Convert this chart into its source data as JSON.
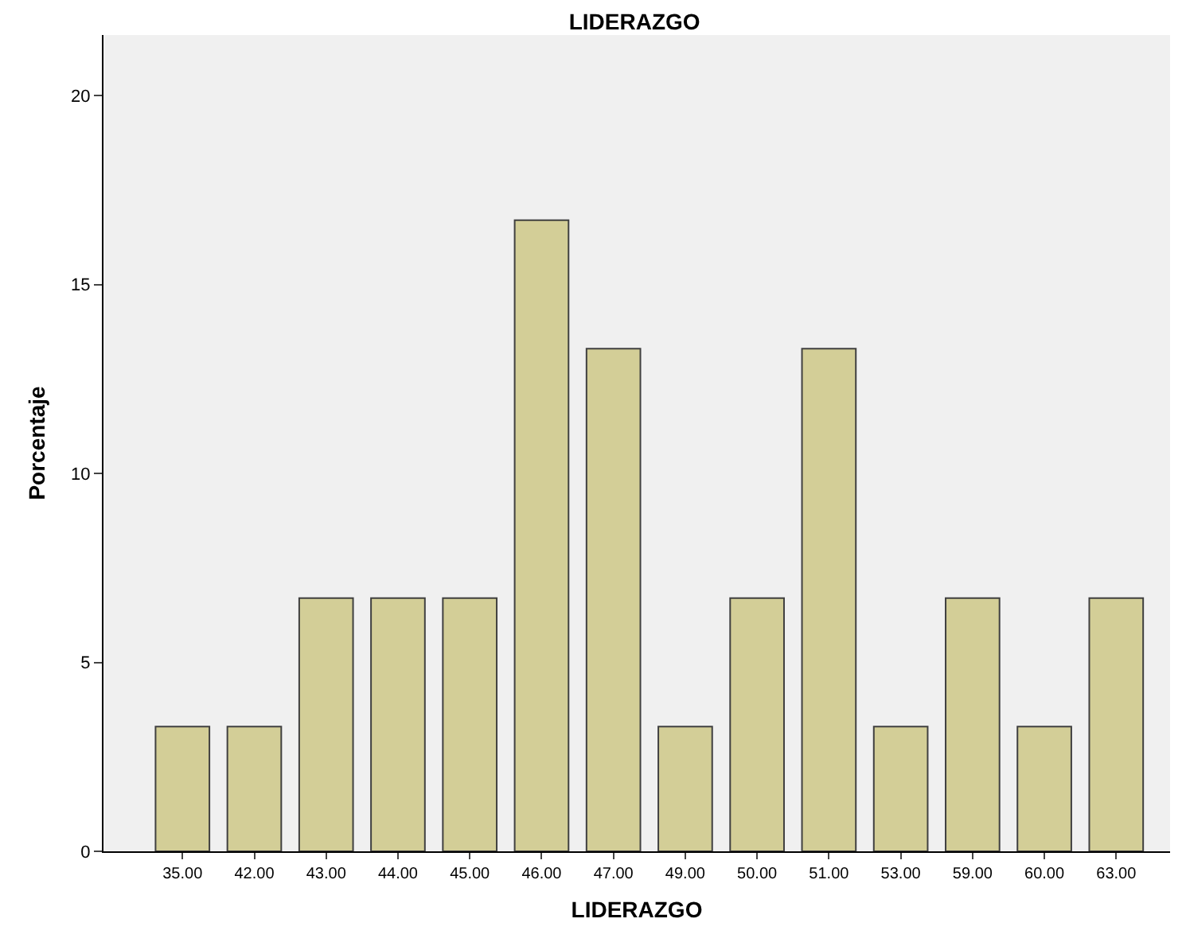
{
  "chart_data": {
    "type": "bar",
    "title": "LIDERAZGO",
    "xlabel": "LIDERAZGO",
    "ylabel": "Porcentaje",
    "categories": [
      "35.00",
      "42.00",
      "43.00",
      "44.00",
      "45.00",
      "46.00",
      "47.00",
      "49.00",
      "50.00",
      "51.00",
      "53.00",
      "59.00",
      "60.00",
      "63.00"
    ],
    "values": [
      3.3,
      3.3,
      6.7,
      6.7,
      6.7,
      16.7,
      13.3,
      3.3,
      6.7,
      13.3,
      3.3,
      6.7,
      3.3,
      6.7
    ],
    "color": "#d3ce97",
    "ylim": [
      0,
      21.6
    ],
    "yticks": [
      0,
      5,
      10,
      15,
      20
    ],
    "grid": false
  }
}
